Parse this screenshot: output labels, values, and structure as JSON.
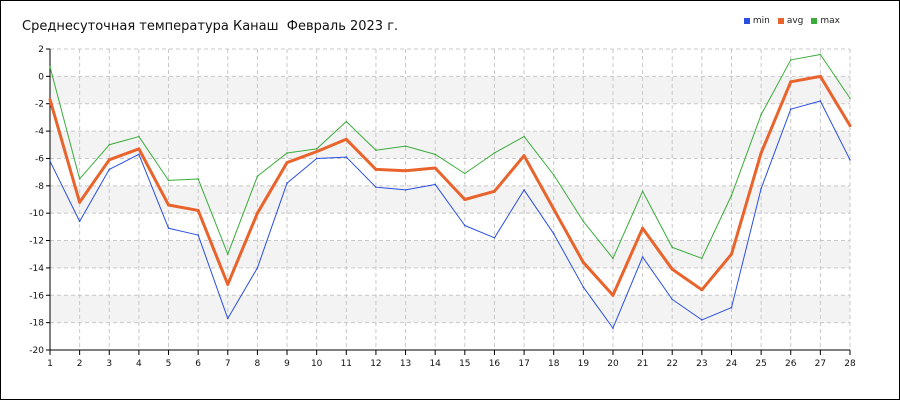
{
  "chart_data": {
    "type": "line",
    "title": "Среднесуточная температура Канаш  Февраль 2023 г.",
    "x": [
      1,
      2,
      3,
      4,
      5,
      6,
      7,
      8,
      9,
      10,
      11,
      12,
      13,
      14,
      15,
      16,
      17,
      18,
      19,
      20,
      21,
      22,
      23,
      24,
      25,
      26,
      27,
      28
    ],
    "ylim": [
      -20,
      2
    ],
    "yticks": [
      2,
      0,
      -2,
      -4,
      -6,
      -8,
      -10,
      -12,
      -14,
      -16,
      -18,
      -20
    ],
    "grid": true,
    "legend_position": "top-right",
    "series": [
      {
        "name": "min",
        "color": "#2a4fe0",
        "values": [
          -6.2,
          -10.6,
          -6.8,
          -5.7,
          -11.1,
          -11.6,
          -17.7,
          -14.0,
          -7.8,
          -6.0,
          -5.9,
          -8.1,
          -8.3,
          -7.9,
          -10.9,
          -11.8,
          -8.3,
          -11.5,
          -15.4,
          -18.4,
          -13.2,
          -16.3,
          -17.8,
          -16.9,
          -8.2,
          -2.4,
          -1.8,
          -6.1
        ]
      },
      {
        "name": "avg",
        "color": "#e8642c",
        "values": [
          -1.7,
          -9.2,
          -6.1,
          -5.3,
          -9.4,
          -9.8,
          -15.2,
          -10.0,
          -6.3,
          -5.5,
          -4.6,
          -6.8,
          -6.9,
          -6.7,
          -9.0,
          -8.4,
          -5.8,
          -9.7,
          -13.6,
          -16.0,
          -11.1,
          -14.1,
          -15.6,
          -13.0,
          -5.6,
          -0.4,
          0.0,
          -3.6
        ]
      },
      {
        "name": "max",
        "color": "#3aac3a",
        "values": [
          0.7,
          -7.5,
          -5.0,
          -4.4,
          -7.6,
          -7.5,
          -13.0,
          -7.3,
          -5.6,
          -5.3,
          -3.3,
          -5.4,
          -5.1,
          -5.7,
          -7.1,
          -5.6,
          -4.4,
          -7.2,
          -10.6,
          -13.3,
          -8.4,
          -12.5,
          -13.3,
          -8.7,
          -2.8,
          1.2,
          1.6,
          -1.6
        ]
      }
    ]
  }
}
